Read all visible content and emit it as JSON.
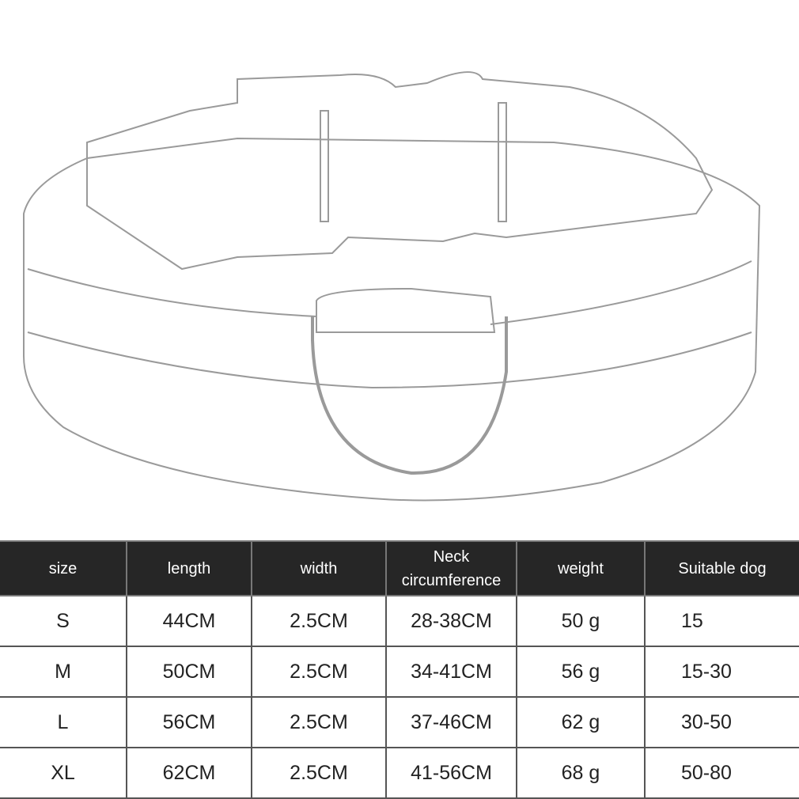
{
  "colors": {
    "header_bg": "#262626",
    "header_text": "#ffffff",
    "body_text": "#222222",
    "sketch_lines": "#9a9a9a"
  },
  "illustration": {
    "subject": "dog-collar-line-drawing"
  },
  "size_table": {
    "headers": [
      "size",
      "length",
      "width",
      "Neck circumference",
      "weight",
      "Suitable dog"
    ],
    "rows": [
      [
        "S",
        "44CM",
        "2.5CM",
        "28-38CM",
        "50 g",
        "15"
      ],
      [
        "M",
        "50CM",
        "2.5CM",
        "34-41CM",
        "56 g",
        "15-30"
      ],
      [
        "L",
        "56CM",
        "2.5CM",
        "37-46CM",
        "62 g",
        "30-50"
      ],
      [
        "XL",
        "62CM",
        "2.5CM",
        "41-56CM",
        "68 g",
        "50-80"
      ]
    ]
  }
}
